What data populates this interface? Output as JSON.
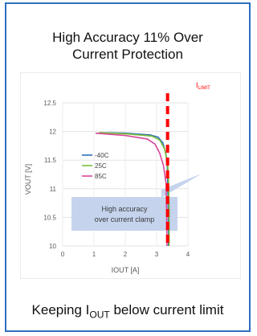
{
  "header": {
    "title_line1": "High Accuracy 11% Over",
    "title_line2": "Current Protection"
  },
  "caption": {
    "main": "Keeping I",
    "sub": "OUT",
    "tail": " below current limit"
  },
  "colors": {
    "border": "#2e6fc0",
    "series_-40C": "#2a6fb7",
    "series_25C": "#7cbf3c",
    "series_85C": "#d9479a",
    "limit_line": "#ff0000",
    "annotation_box": "#c5d3ed"
  },
  "chart_data": {
    "type": "line",
    "xlabel": "IOUT [A]",
    "ylabel": "VOUT [V]",
    "xlim": [
      0,
      4
    ],
    "ylim": [
      10,
      12.5
    ],
    "xticks": [
      "0",
      "1",
      "2",
      "3",
      "4"
    ],
    "yticks": [
      "10",
      "10.5",
      "11",
      "11.5",
      "12",
      "12.5"
    ],
    "grid": true,
    "legend_position": "left",
    "series": [
      {
        "name": "-40C",
        "points": [
          [
            1.2,
            11.98
          ],
          [
            2.0,
            11.97
          ],
          [
            2.8,
            11.94
          ],
          [
            3.05,
            11.9
          ],
          [
            3.2,
            11.8
          ],
          [
            3.3,
            11.6
          ],
          [
            3.34,
            11.4
          ],
          [
            3.36,
            11.0
          ],
          [
            3.38,
            10.5
          ],
          [
            3.38,
            10.0
          ]
        ]
      },
      {
        "name": "25C",
        "points": [
          [
            1.15,
            11.98
          ],
          [
            2.0,
            11.96
          ],
          [
            2.85,
            11.92
          ],
          [
            3.1,
            11.85
          ],
          [
            3.25,
            11.7
          ],
          [
            3.35,
            11.45
          ],
          [
            3.38,
            11.2
          ],
          [
            3.4,
            10.6
          ],
          [
            3.4,
            10.0
          ]
        ]
      },
      {
        "name": "85C",
        "points": [
          [
            1.05,
            11.97
          ],
          [
            2.0,
            11.93
          ],
          [
            2.7,
            11.87
          ],
          [
            2.95,
            11.78
          ],
          [
            3.1,
            11.62
          ],
          [
            3.22,
            11.4
          ],
          [
            3.3,
            11.1
          ],
          [
            3.32,
            10.6
          ],
          [
            3.33,
            10.0
          ]
        ]
      }
    ],
    "limit_label_main": "I",
    "limit_label_sub": "LIMIT",
    "limit_x": 3.35,
    "annotation_line1": "High accuracy",
    "annotation_line2": "over current clamp"
  }
}
